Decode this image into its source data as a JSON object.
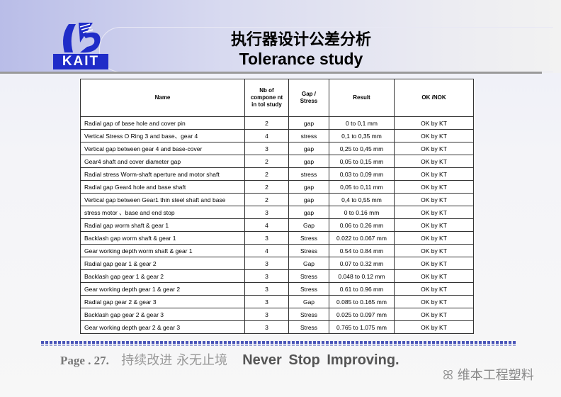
{
  "logo": {
    "text": "KAIT"
  },
  "title": {
    "cn": "执行器设计公差分析",
    "en": "Tolerance study"
  },
  "table": {
    "headers": [
      "Name",
      "Nb of compone nt in tol study",
      "Gap / Stress",
      "Result",
      "OK /NOK"
    ],
    "rows": [
      [
        "Radial gap of base  hole  and cover pin",
        "2",
        "gap",
        "0 to 0,1 mm",
        "OK  by KT"
      ],
      [
        "Vertical Stress O Ring 3 and base、gear 4",
        "4",
        "stress",
        "0,1 to 0,35 mm",
        "OK  by KT"
      ],
      [
        "Vertical gap between  gear 4 and base-cover",
        "3",
        "gap",
        "0,25 to 0,45 mm",
        "OK  by KT"
      ],
      [
        "Gear4 shaft and cover diameter gap",
        "2",
        "gap",
        "0,05 to 0,15 mm",
        "OK  by KT"
      ],
      [
        "Radial stress Worm-shaft aperture and motor shaft",
        "2",
        "stress",
        "0,03 to 0,09 mm",
        "OK  by KT"
      ],
      [
        "Radial gap Gear4 hole and base shaft",
        "2",
        "gap",
        "0,05 to 0,11 mm",
        "OK  by KT"
      ],
      [
        "Vertical gap between Gear1 thin steel shaft and base",
        "2",
        "gap",
        "0,4 to 0,55 mm",
        "OK  by KT"
      ],
      [
        "stress motor 、base and end stop",
        "3",
        "gap",
        "0 to 0.16 mm",
        "OK  by KT"
      ],
      [
        "Radial gap worm shaft & gear 1",
        "4",
        "Gap",
        "0.06 to 0.26 mm",
        "OK  by KT"
      ],
      [
        "Backlash gap worm shaft & gear 1",
        "3",
        "Stress",
        "0.022 to 0.067 mm",
        "OK  by KT"
      ],
      [
        "Gear working depth worm shaft & gear 1",
        "4",
        "Stress",
        "0.54 to 0.84 mm",
        "OK  by KT"
      ],
      [
        "Radial gap gear 1 & gear 2",
        "3",
        "Gap",
        "0.07 to 0.32 mm",
        "OK  by KT"
      ],
      [
        "Backlash gap gear 1 & gear 2",
        "3",
        "Stress",
        "0.048 to 0.12 mm",
        "OK  by KT"
      ],
      [
        "Gear working depth gear 1 & gear 2",
        "3",
        "Stress",
        "0.61 to 0.96 mm",
        "OK  by KT"
      ],
      [
        "Radial gap gear 2 & gear 3",
        "3",
        "Gap",
        "0.085 to 0.165 mm",
        "OK  by KT"
      ],
      [
        "Backlash gap gear 2 & gear 3",
        "3",
        "Stress",
        "0.025 to 0.097 mm",
        "OK  by KT"
      ],
      [
        "Gear working depth gear 2 & gear 3",
        "3",
        "Stress",
        "0.765 to 1.075 mm",
        "OK  by KT"
      ]
    ]
  },
  "footer": {
    "page": "Page . 27.",
    "cn": "持续改进   永无止境",
    "en": "Never Stop Improving."
  },
  "watermark": "维本工程塑料"
}
